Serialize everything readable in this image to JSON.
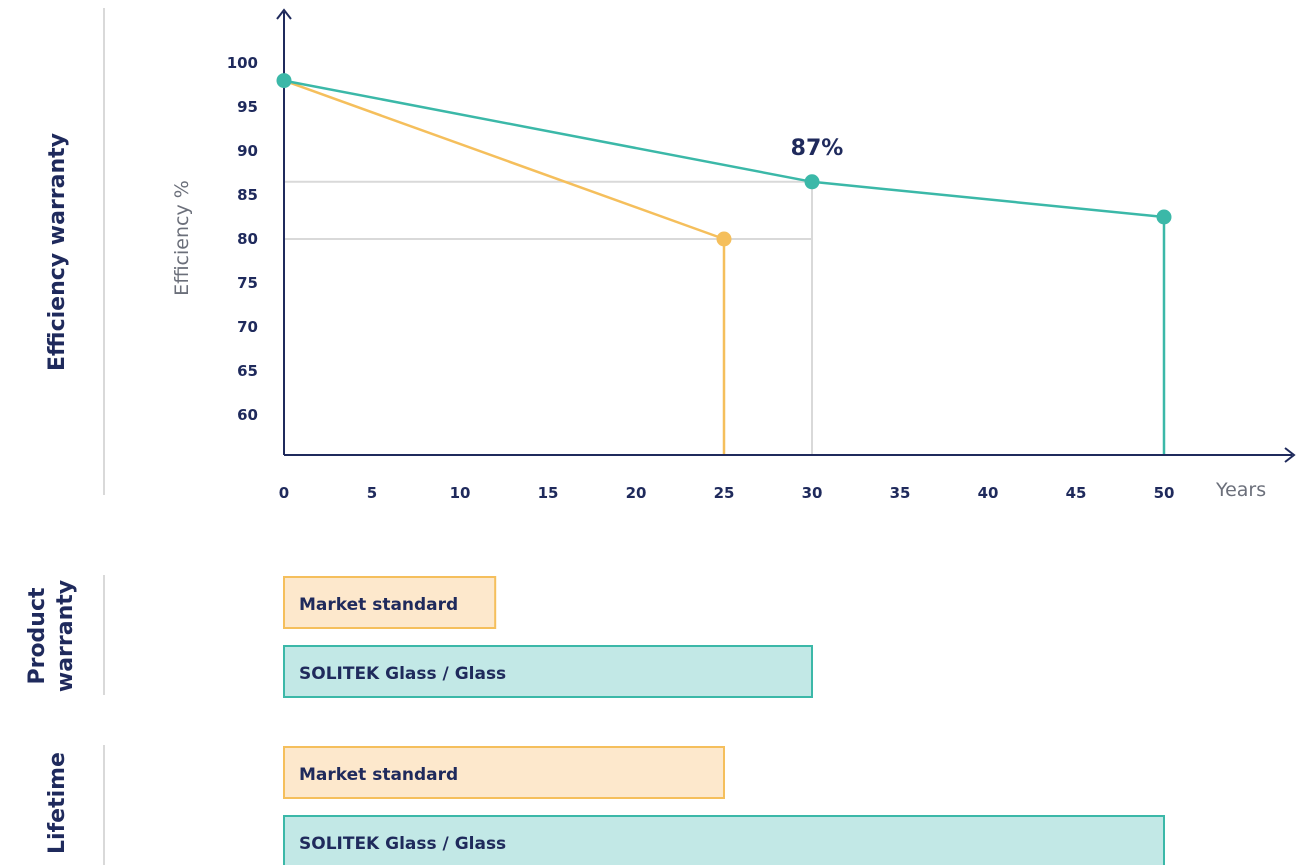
{
  "colors": {
    "navy": "#1f2a5c",
    "teal": "#3bb8a8",
    "teal_fill": "#c2e8e6",
    "orange": "#f5bf5c",
    "orange_fill": "#fde8cc",
    "grid": "#d9d9d9"
  },
  "sections": {
    "efficiency": "Efficiency warranty",
    "product": [
      "Product",
      "warranty"
    ],
    "lifetime": "Lifetime"
  },
  "chart_data": {
    "type": "line",
    "xlabel": "Years",
    "ylabel": "Efficiency %",
    "x_ticks": [
      0,
      5,
      10,
      15,
      20,
      25,
      30,
      35,
      40,
      45,
      50
    ],
    "y_ticks": [
      60,
      65,
      70,
      75,
      80,
      85,
      90,
      95,
      100
    ],
    "xlim": [
      0,
      50
    ],
    "ylim": [
      55,
      100
    ],
    "series": [
      {
        "color": "teal",
        "points": [
          [
            0,
            98
          ],
          [
            30,
            86.5
          ],
          [
            50,
            82.5
          ]
        ]
      },
      {
        "color": "orange",
        "points": [
          [
            0,
            98
          ],
          [
            25,
            80
          ]
        ]
      }
    ],
    "annotations": [
      {
        "x": 30,
        "y": 86.5,
        "text": "87%"
      }
    ]
  },
  "bars": {
    "product": [
      {
        "label": "Market standard",
        "years": 12,
        "color": "orange"
      },
      {
        "label": "SOLITEK Glass / Glass",
        "years": 30,
        "color": "teal"
      }
    ],
    "lifetime": [
      {
        "label": "Market standard",
        "years": 25,
        "color": "orange"
      },
      {
        "label": "SOLITEK Glass / Glass",
        "years": 50,
        "color": "teal"
      }
    ]
  }
}
